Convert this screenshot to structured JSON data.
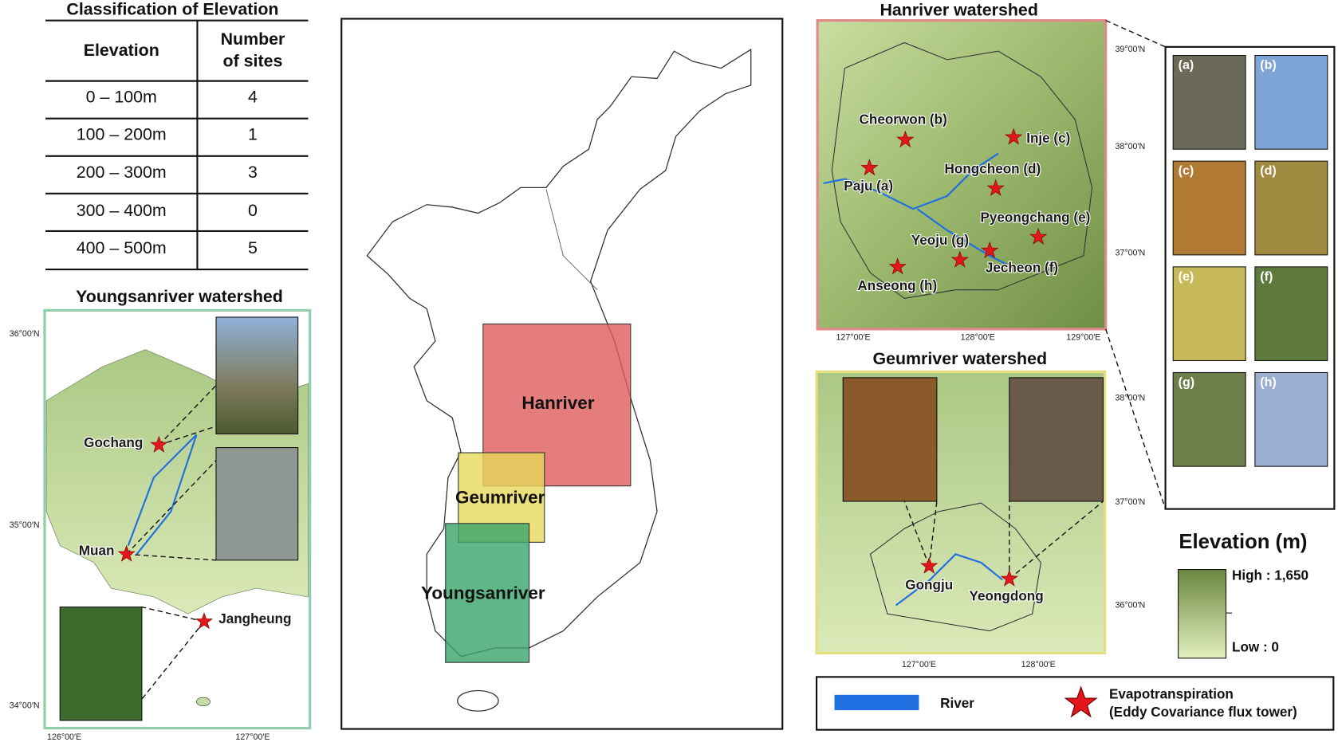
{
  "elevation_table": {
    "title": "Classification of  Elevation",
    "headers": [
      "Elevation",
      [
        "Number",
        "of sites"
      ]
    ],
    "rows": [
      [
        "0 – 100m",
        "4"
      ],
      [
        "100 – 200m",
        "1"
      ],
      [
        "200 – 300m",
        "3"
      ],
      [
        "300 – 400m",
        "0"
      ],
      [
        "400 – 500m",
        "5"
      ]
    ]
  },
  "overview_map": {
    "regions": [
      "Hanriver",
      "Geumriver",
      "Youngsanriver"
    ]
  },
  "youngsan_map": {
    "title": "Youngsanriver watershed",
    "sites": [
      "Gochang",
      "Muan",
      "Jangheung"
    ],
    "lat_labels": [
      "36°00′N",
      "35°00′N",
      "34°00′N"
    ],
    "lon_labels": [
      "126°00′E",
      "127°00′E"
    ]
  },
  "han_map": {
    "title": "Hanriver watershed",
    "sites": [
      "Cheorwon (b)",
      "Inje (c)",
      "Paju (a)",
      "Hongcheon (d)",
      "Pyeongchang (e)",
      "Yeoju (g)",
      "Jecheon (f)",
      "Anseong (h)"
    ],
    "lat_labels": [
      "39°00′N",
      "38°00′N",
      "37°00′N"
    ],
    "lon_labels": [
      "127°00′E",
      "128°00′E",
      "129°00′E"
    ]
  },
  "photo_panel": {
    "labels": [
      "(a)",
      "(b)",
      "(c)",
      "(d)",
      "(e)",
      "(f)",
      "(g)",
      "(h)"
    ]
  },
  "geum_map": {
    "title": "Geumriver watershed",
    "sites": [
      "Gongju",
      "Yeongdong"
    ],
    "lat_labels": [
      "38°00′N",
      "37°00′N",
      "36°00′N"
    ],
    "lon_labels": [
      "127°00′E",
      "128°00′E"
    ]
  },
  "elevation_legend": {
    "title": "Elevation (m)",
    "high": "High : 1,650",
    "low": "Low : 0"
  },
  "legend": {
    "river": "River",
    "tower": [
      "Evapotranspiration",
      "(Eddy Covariance flux tower)"
    ]
  }
}
